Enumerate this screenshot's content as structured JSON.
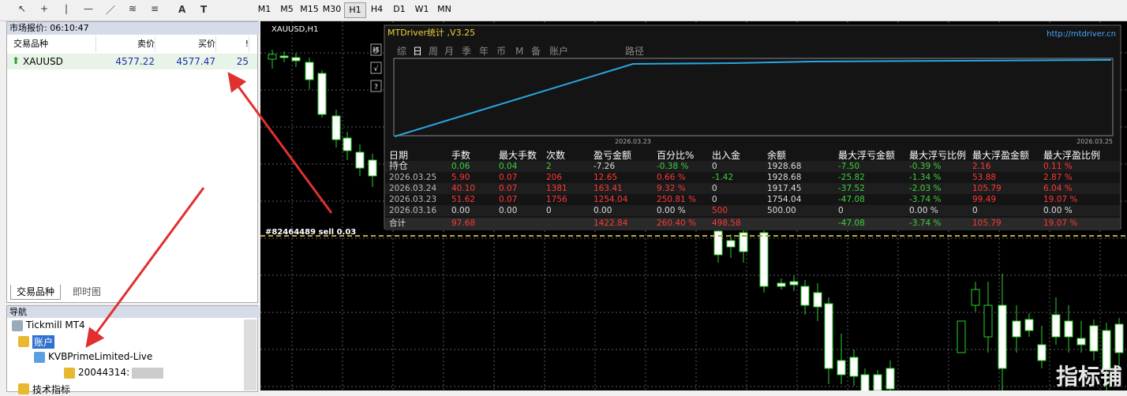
{
  "toolbar": {
    "text_tools": [
      "A",
      "T"
    ],
    "timeframes": [
      "M1",
      "M5",
      "M15",
      "M30",
      "H1",
      "H4",
      "D1",
      "W1",
      "MN"
    ]
  },
  "market_watch": {
    "title": "市场报价: 06:10:47",
    "columns": [
      "交易品种",
      "卖价",
      "买价",
      "!"
    ],
    "rows": [
      [
        "XAUUSD",
        "4577.22",
        "4577.47",
        "25"
      ]
    ],
    "tabs": [
      "交易品种",
      "即时图"
    ]
  },
  "navigator": {
    "title": "导航",
    "items": [
      "Tickmill MT4",
      "账户",
      "KVBPrimeLimited-Live",
      "20044314:",
      "技术指标"
    ]
  },
  "chart": {
    "symbol": "XAUUSD,H1",
    "order_label": "#82464489 sell 0.03"
  },
  "stats_panel": {
    "title": "MTDriver统计 ,V3.25",
    "url": "http://mtdriver.cn",
    "side_buttons": [
      "移",
      "√",
      "?"
    ],
    "tabs": [
      "综",
      "日",
      "周",
      "月",
      "季",
      "年",
      "币",
      "M",
      "备",
      "账户"
    ],
    "path_label": "路径",
    "graph_dates": [
      "2026.03.23",
      "2026.03.25"
    ],
    "table": {
      "columns": [
        "日期",
        "手数",
        "最大手数",
        "次数",
        "盈亏金额",
        "百分比%",
        "出入金",
        "余额",
        "最大浮亏金额",
        "最大浮亏比例",
        "最大浮盈金额",
        "最大浮盈比例"
      ],
      "rows": [
        [
          "持仓",
          "0.06",
          "0.04",
          "2",
          "-7.26",
          "-0.38 %",
          "0",
          "1928.68",
          "-7.50",
          "-0.39 %",
          "2.16",
          "0.11 %"
        ],
        [
          "2026.03.25",
          "5.90",
          "0.07",
          "206",
          "12.65",
          "0.66 %",
          "-1.42",
          "1928.68",
          "-25.82",
          "-1.34 %",
          "53.88",
          "2.87 %"
        ],
        [
          "2026.03.24",
          "40.10",
          "0.07",
          "1381",
          "163.41",
          "9.32 %",
          "0",
          "1917.45",
          "-37.52",
          "-2.03 %",
          "105.79",
          "6.04 %"
        ],
        [
          "2026.03.23",
          "51.62",
          "0.07",
          "1756",
          "1254.04",
          "250.81 %",
          "0",
          "1754.04",
          "-47.08",
          "-3.74 %",
          "99.49",
          "19.07 %"
        ],
        [
          "2026.03.16",
          "0.00",
          "0.00",
          "0",
          "0.00",
          "0.00 %",
          "500",
          "500.00",
          "0",
          "0.00 %",
          "0",
          "0.00 %"
        ],
        [
          "合计",
          "97.68",
          null,
          null,
          "1422.84",
          "260.40 %",
          "498.58",
          null,
          "-47.08",
          "-3.74 %",
          "105.79",
          "19.07 %"
        ]
      ]
    }
  },
  "watermark": "指标铺"
}
